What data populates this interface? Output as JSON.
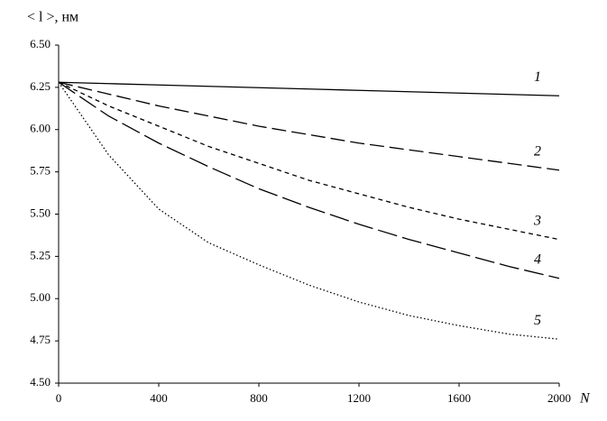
{
  "chart_data": {
    "type": "line",
    "y_label": "< l >, нм",
    "x_label": "N",
    "x": [
      0,
      200,
      400,
      600,
      800,
      1000,
      1200,
      1400,
      1600,
      1800,
      2000
    ],
    "xlim": [
      0,
      2000
    ],
    "xticks": [
      0,
      400,
      800,
      1200,
      1600,
      2000
    ],
    "ylim": [
      4.5,
      6.5
    ],
    "yticks": [
      {
        "value": 4.5,
        "label": "4.50"
      },
      4.75,
      {
        "value": 5,
        "label": "5.00"
      },
      5.25,
      {
        "value": 5.5,
        "label": "5.50"
      },
      5.75,
      {
        "value": 6,
        "label": "6.00"
      },
      6.25,
      {
        "value": 6.5,
        "label": "6.50"
      }
    ],
    "grid": false,
    "series": [
      {
        "name": "1",
        "color": "#000000",
        "dash": "solid",
        "values": [
          6.28,
          6.272,
          6.264,
          6.256,
          6.248,
          6.24,
          6.232,
          6.224,
          6.216,
          6.208,
          6.2
        ]
      },
      {
        "name": "2",
        "color": "#000000",
        "dash": "long",
        "values": [
          6.28,
          6.21,
          6.14,
          6.08,
          6.02,
          5.97,
          5.92,
          5.88,
          5.84,
          5.8,
          5.76
        ]
      },
      {
        "name": "3",
        "color": "#000000",
        "dash": "short",
        "values": [
          6.28,
          6.14,
          6.02,
          5.9,
          5.8,
          5.7,
          5.62,
          5.54,
          5.47,
          5.41,
          5.35
        ]
      },
      {
        "name": "4",
        "color": "#000000",
        "dash": "longer",
        "values": [
          6.28,
          6.08,
          5.92,
          5.78,
          5.65,
          5.54,
          5.44,
          5.35,
          5.27,
          5.19,
          5.12
        ]
      },
      {
        "name": "5",
        "color": "#000000",
        "dash": "dotted",
        "values": [
          6.28,
          5.85,
          5.53,
          5.33,
          5.2,
          5.08,
          4.98,
          4.9,
          4.84,
          4.79,
          4.76
        ]
      }
    ]
  }
}
